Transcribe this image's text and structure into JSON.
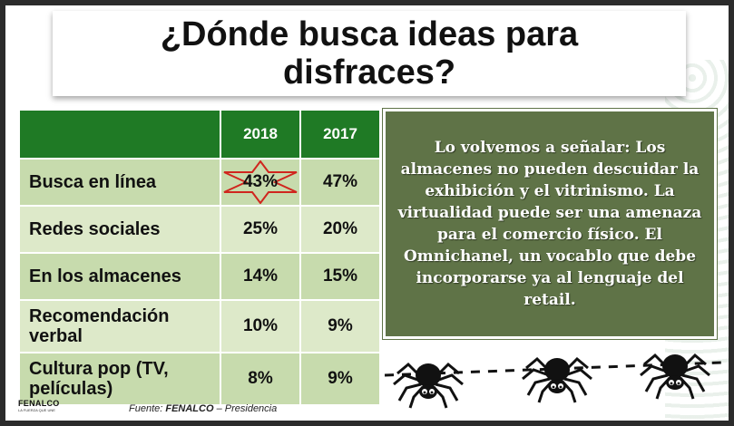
{
  "title": "¿Dónde busca ideas para disfraces?",
  "table": {
    "headers": [
      "",
      "2018",
      "2017"
    ],
    "rows": [
      {
        "label": "Busca en línea",
        "v2018": "43%",
        "v2017": "47%",
        "highlighted": true
      },
      {
        "label": "Redes sociales",
        "v2018": "25%",
        "v2017": "20%"
      },
      {
        "label": "En los almacenes",
        "v2018": "14%",
        "v2017": "15%"
      },
      {
        "label": "Recomendación verbal",
        "v2018": "10%",
        "v2017": "9%"
      },
      {
        "label": "Cultura pop (TV, películas)",
        "v2018": "8%",
        "v2017": "9%"
      }
    ]
  },
  "note": "Lo volvemos a señalar: Los almacenes no pueden descuidar la exhibición y el vitrinismo. La virtualidad puede ser una amenaza para el comercio físico. El Omnichanel, un vocablo que debe incorporarse ya al lenguaje del retail.",
  "source": {
    "prefix": "Fuente: ",
    "org": "FENALCO",
    "suffix": " – Presidencia"
  },
  "logo": {
    "name": "FENALCO",
    "tagline": "LA FUERZA QUE UNE"
  },
  "colors": {
    "header_green": "#1f7a25",
    "row_light": "#dde9c9",
    "row_dark": "#c7dbad",
    "note_bg": "#5f7347",
    "star_outline": "#d0261e"
  },
  "icons": [
    "star-highlight-icon",
    "spider-icon",
    "spider-icon",
    "spider-icon"
  ]
}
